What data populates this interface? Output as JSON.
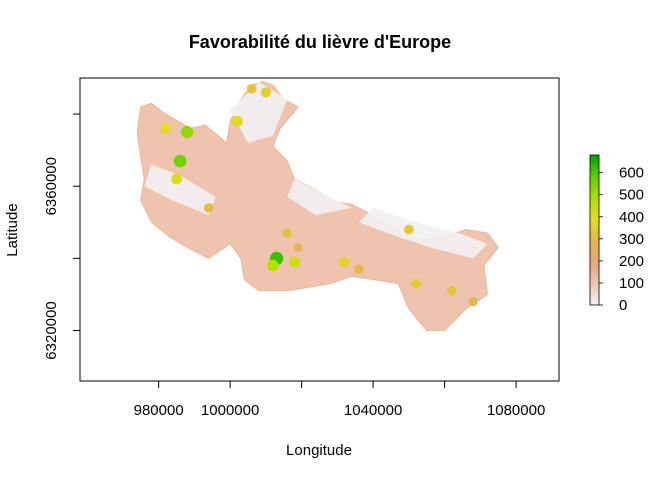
{
  "chart_data": {
    "type": "heatmap",
    "title": "Favorabilité du lièvre d'Europe",
    "xlabel": "Longitude",
    "ylabel": "Latitude",
    "xlim": [
      958000,
      1092000
    ],
    "ylim": [
      6306000,
      6390000
    ],
    "x_ticks": [
      980000,
      1000000,
      1040000,
      1080000
    ],
    "x_tick_marks": [
      980000,
      1000000,
      1020000,
      1040000,
      1060000,
      1080000
    ],
    "y_ticks": [
      6320000,
      6360000
    ],
    "y_tick_marks": [
      6320000,
      6340000,
      6360000,
      6380000
    ],
    "legend": {
      "placement": "right",
      "ticks": [
        0,
        100,
        200,
        300,
        400,
        500,
        600
      ],
      "range": [
        0,
        680
      ],
      "colors": [
        "#f2f2f2",
        "#efc6b3",
        "#e9a67a",
        "#e6b74a",
        "#e6dd1c",
        "#aee000",
        "#5ccf00",
        "#00a600"
      ]
    },
    "grid": false,
    "regions": [
      {
        "name": "main-landmass",
        "outline": [
          [
            975000,
            6382000
          ],
          [
            978000,
            6383000
          ],
          [
            982000,
            6380000
          ],
          [
            989000,
            6376000
          ],
          [
            993000,
            6377000
          ],
          [
            999000,
            6372000
          ],
          [
            1000000,
            6378000
          ],
          [
            1003000,
            6384000
          ],
          [
            1006000,
            6388000
          ],
          [
            1009000,
            6389000
          ],
          [
            1012000,
            6388000
          ],
          [
            1015000,
            6384000
          ],
          [
            1019000,
            6382000
          ],
          [
            1014000,
            6376000
          ],
          [
            1012000,
            6371000
          ],
          [
            1016000,
            6367000
          ],
          [
            1018000,
            6362000
          ],
          [
            1024000,
            6359000
          ],
          [
            1028000,
            6356000
          ],
          [
            1034000,
            6355000
          ],
          [
            1040000,
            6352000
          ],
          [
            1047000,
            6348000
          ],
          [
            1054000,
            6345000
          ],
          [
            1060000,
            6346000
          ],
          [
            1066000,
            6348000
          ],
          [
            1072000,
            6347000
          ],
          [
            1075000,
            6343000
          ],
          [
            1071000,
            6338000
          ],
          [
            1072000,
            6330000
          ],
          [
            1066000,
            6326000
          ],
          [
            1060000,
            6320000
          ],
          [
            1055000,
            6320000
          ],
          [
            1050000,
            6326000
          ],
          [
            1047000,
            6333000
          ],
          [
            1041000,
            6334000
          ],
          [
            1034000,
            6335000
          ],
          [
            1028000,
            6333000
          ],
          [
            1022000,
            6332000
          ],
          [
            1016000,
            6331000
          ],
          [
            1008000,
            6331000
          ],
          [
            1004000,
            6334000
          ],
          [
            1003000,
            6340000
          ],
          [
            1000000,
            6344000
          ],
          [
            994000,
            6340000
          ],
          [
            988000,
            6343000
          ],
          [
            983000,
            6346000
          ],
          [
            978000,
            6350000
          ],
          [
            975000,
            6356000
          ],
          [
            976000,
            6362000
          ],
          [
            975000,
            6368000
          ],
          [
            974000,
            6375000
          ]
        ]
      }
    ],
    "favorability_cells": [
      {
        "x": 1013000,
        "y": 6340000,
        "v": 620
      },
      {
        "x": 1012000,
        "y": 6338000,
        "v": 480
      },
      {
        "x": 1018000,
        "y": 6339000,
        "v": 430
      },
      {
        "x": 986000,
        "y": 6367000,
        "v": 560
      },
      {
        "x": 988000,
        "y": 6375000,
        "v": 520
      },
      {
        "x": 985000,
        "y": 6362000,
        "v": 410
      },
      {
        "x": 982000,
        "y": 6376000,
        "v": 380
      },
      {
        "x": 1002000,
        "y": 6378000,
        "v": 400
      },
      {
        "x": 1006000,
        "y": 6387000,
        "v": 330
      },
      {
        "x": 1010000,
        "y": 6386000,
        "v": 350
      },
      {
        "x": 1032000,
        "y": 6339000,
        "v": 360
      },
      {
        "x": 1036000,
        "y": 6337000,
        "v": 300
      },
      {
        "x": 1050000,
        "y": 6348000,
        "v": 330
      },
      {
        "x": 1052000,
        "y": 6333000,
        "v": 340
      },
      {
        "x": 1062000,
        "y": 6331000,
        "v": 320
      },
      {
        "x": 1068000,
        "y": 6328000,
        "v": 280
      },
      {
        "x": 1019000,
        "y": 6343000,
        "v": 270
      },
      {
        "x": 1016000,
        "y": 6347000,
        "v": 310
      },
      {
        "x": 994000,
        "y": 6354000,
        "v": 300
      }
    ]
  }
}
